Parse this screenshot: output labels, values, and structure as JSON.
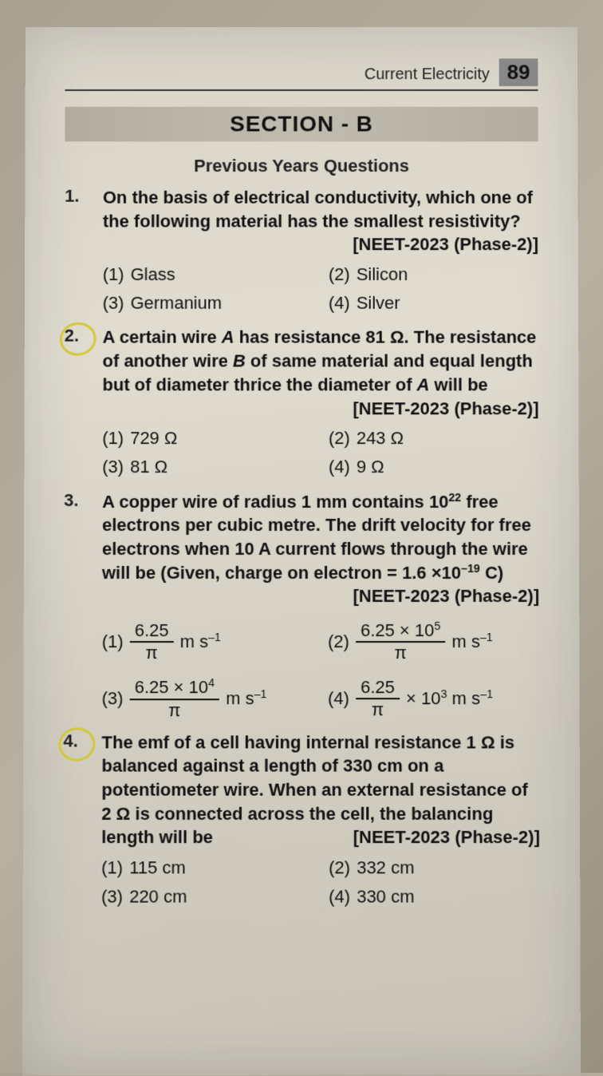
{
  "header": {
    "chapter": "Current Electricity",
    "page": "89"
  },
  "section_banner": "SECTION - B",
  "subheading": "Previous Years Questions",
  "questions": [
    {
      "num": "1.",
      "circled": false,
      "stem": "On the basis of electrical conductivity, which one of the following material has the smallest resistivity?",
      "source": "[NEET-2023 (Phase-2)]",
      "options": [
        {
          "label": "(1)",
          "text": "Glass"
        },
        {
          "label": "(2)",
          "text": "Silicon"
        },
        {
          "label": "(3)",
          "text": "Germanium"
        },
        {
          "label": "(4)",
          "text": "Silver"
        }
      ]
    },
    {
      "num": "2.",
      "circled": true,
      "stem_a": "A certain wire ",
      "stem_b": " has resistance 81 Ω. The resistance of another wire ",
      "stem_c": " of same material and equal length but of diameter thrice the diameter of ",
      "stem_d": " will be",
      "var_a": "A",
      "var_b": "B",
      "var_c": "A",
      "source": "[NEET-2023 (Phase-2)]",
      "options": [
        {
          "label": "(1)",
          "text": "729 Ω"
        },
        {
          "label": "(2)",
          "text": "243 Ω"
        },
        {
          "label": "(3)",
          "text": "81 Ω"
        },
        {
          "label": "(4)",
          "text": "9 Ω"
        }
      ]
    },
    {
      "num": "3.",
      "circled": false,
      "stem_a": "A copper wire of radius 1 mm contains 10",
      "sup_a": "22",
      "stem_b": " free electrons per cubic metre. The drift velocity for free electrons when 10 A current flows through the wire will be (Given, charge on electron = 1.6 ×10",
      "sup_b": "–19",
      "stem_c": " C)",
      "source": "[NEET-2023 (Phase-2)]",
      "math_options": {
        "o1": {
          "label": "(1)",
          "num": "6.25",
          "den": "π",
          "suffix_a": "m s",
          "sup": "–1"
        },
        "o2": {
          "label": "(2)",
          "num_a": "6.25 × 10",
          "num_sup": "5",
          "den": "π",
          "suffix_a": "m s",
          "sup": "–1"
        },
        "o3": {
          "label": "(3)",
          "num_a": "6.25 × 10",
          "num_sup": "4",
          "den": "π",
          "suffix_a": "m s",
          "sup": "–1"
        },
        "o4": {
          "label": "(4)",
          "num": "6.25",
          "den": "π",
          "mid_a": "× 10",
          "mid_sup": "3",
          "suffix_a": "m s",
          "sup": "–1"
        }
      }
    },
    {
      "num": "4.",
      "circled": true,
      "stem": "The emf of a cell having internal resistance 1 Ω is balanced against a length of 330 cm on a potentiometer wire. When an external resistance of 2 Ω is connected across the cell, the balancing length will be",
      "source": "[NEET-2023 (Phase-2)]",
      "options": [
        {
          "label": "(1)",
          "text": "115 cm"
        },
        {
          "label": "(2)",
          "text": "332 cm"
        },
        {
          "label": "(3)",
          "text": "220 cm"
        },
        {
          "label": "(4)",
          "text": "330 cm"
        }
      ]
    }
  ],
  "colors": {
    "circle": "#d4c838",
    "text": "#111111",
    "banner_bg": "#b8b4a8",
    "page_bg": "#d8d4c8"
  }
}
